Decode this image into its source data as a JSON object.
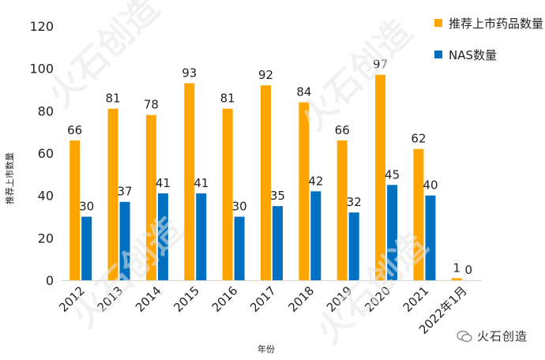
{
  "chart_data": {
    "type": "bar",
    "categories": [
      "2012",
      "2013",
      "2014",
      "2015",
      "2016",
      "2017",
      "2018",
      "2019",
      "2020",
      "2021",
      "2022年1月"
    ],
    "series": [
      {
        "name": "推荐上市药品数量",
        "values": [
          66,
          81,
          78,
          93,
          81,
          92,
          84,
          66,
          97,
          62,
          1
        ],
        "color": "#FFA500"
      },
      {
        "name": "NAS数量",
        "values": [
          30,
          37,
          41,
          41,
          30,
          35,
          42,
          32,
          45,
          40,
          0
        ],
        "color": "#0070C0"
      }
    ],
    "ylim": [
      0,
      120
    ],
    "yticks": [
      0,
      20,
      40,
      60,
      80,
      100,
      120
    ],
    "ylabel": "推荐上市数量",
    "xlabel": "年份",
    "grid": false,
    "legend": "top-right"
  },
  "watermark": {
    "text": "火石创造"
  }
}
